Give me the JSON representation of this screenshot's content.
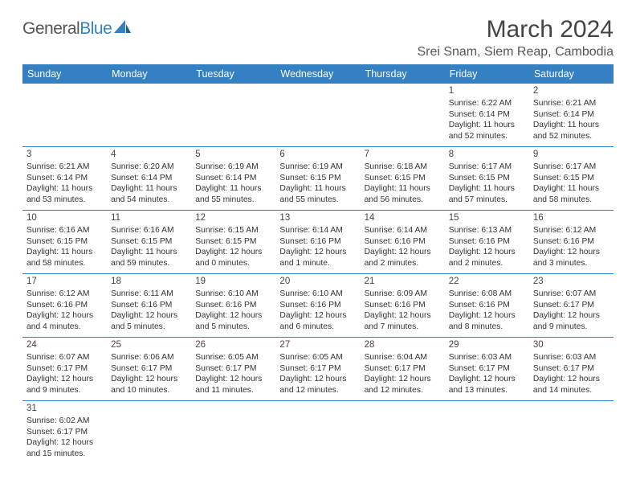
{
  "brand": {
    "general": "General",
    "blue": "Blue"
  },
  "title": "March 2024",
  "location": "Srei Snam, Siem Reap, Cambodia",
  "colors": {
    "header_bg": "#3580c2",
    "header_fg": "#ffffff",
    "rule": "#3580c2",
    "text": "#333333"
  },
  "weekdays": [
    "Sunday",
    "Monday",
    "Tuesday",
    "Wednesday",
    "Thursday",
    "Friday",
    "Saturday"
  ],
  "weeks": [
    [
      null,
      null,
      null,
      null,
      null,
      {
        "n": "1",
        "sr": "Sunrise: 6:22 AM",
        "ss": "Sunset: 6:14 PM",
        "dl1": "Daylight: 11 hours",
        "dl2": "and 52 minutes."
      },
      {
        "n": "2",
        "sr": "Sunrise: 6:21 AM",
        "ss": "Sunset: 6:14 PM",
        "dl1": "Daylight: 11 hours",
        "dl2": "and 52 minutes."
      }
    ],
    [
      {
        "n": "3",
        "sr": "Sunrise: 6:21 AM",
        "ss": "Sunset: 6:14 PM",
        "dl1": "Daylight: 11 hours",
        "dl2": "and 53 minutes."
      },
      {
        "n": "4",
        "sr": "Sunrise: 6:20 AM",
        "ss": "Sunset: 6:14 PM",
        "dl1": "Daylight: 11 hours",
        "dl2": "and 54 minutes."
      },
      {
        "n": "5",
        "sr": "Sunrise: 6:19 AM",
        "ss": "Sunset: 6:14 PM",
        "dl1": "Daylight: 11 hours",
        "dl2": "and 55 minutes."
      },
      {
        "n": "6",
        "sr": "Sunrise: 6:19 AM",
        "ss": "Sunset: 6:15 PM",
        "dl1": "Daylight: 11 hours",
        "dl2": "and 55 minutes."
      },
      {
        "n": "7",
        "sr": "Sunrise: 6:18 AM",
        "ss": "Sunset: 6:15 PM",
        "dl1": "Daylight: 11 hours",
        "dl2": "and 56 minutes."
      },
      {
        "n": "8",
        "sr": "Sunrise: 6:17 AM",
        "ss": "Sunset: 6:15 PM",
        "dl1": "Daylight: 11 hours",
        "dl2": "and 57 minutes."
      },
      {
        "n": "9",
        "sr": "Sunrise: 6:17 AM",
        "ss": "Sunset: 6:15 PM",
        "dl1": "Daylight: 11 hours",
        "dl2": "and 58 minutes."
      }
    ],
    [
      {
        "n": "10",
        "sr": "Sunrise: 6:16 AM",
        "ss": "Sunset: 6:15 PM",
        "dl1": "Daylight: 11 hours",
        "dl2": "and 58 minutes."
      },
      {
        "n": "11",
        "sr": "Sunrise: 6:16 AM",
        "ss": "Sunset: 6:15 PM",
        "dl1": "Daylight: 11 hours",
        "dl2": "and 59 minutes."
      },
      {
        "n": "12",
        "sr": "Sunrise: 6:15 AM",
        "ss": "Sunset: 6:15 PM",
        "dl1": "Daylight: 12 hours",
        "dl2": "and 0 minutes."
      },
      {
        "n": "13",
        "sr": "Sunrise: 6:14 AM",
        "ss": "Sunset: 6:16 PM",
        "dl1": "Daylight: 12 hours",
        "dl2": "and 1 minute."
      },
      {
        "n": "14",
        "sr": "Sunrise: 6:14 AM",
        "ss": "Sunset: 6:16 PM",
        "dl1": "Daylight: 12 hours",
        "dl2": "and 2 minutes."
      },
      {
        "n": "15",
        "sr": "Sunrise: 6:13 AM",
        "ss": "Sunset: 6:16 PM",
        "dl1": "Daylight: 12 hours",
        "dl2": "and 2 minutes."
      },
      {
        "n": "16",
        "sr": "Sunrise: 6:12 AM",
        "ss": "Sunset: 6:16 PM",
        "dl1": "Daylight: 12 hours",
        "dl2": "and 3 minutes."
      }
    ],
    [
      {
        "n": "17",
        "sr": "Sunrise: 6:12 AM",
        "ss": "Sunset: 6:16 PM",
        "dl1": "Daylight: 12 hours",
        "dl2": "and 4 minutes."
      },
      {
        "n": "18",
        "sr": "Sunrise: 6:11 AM",
        "ss": "Sunset: 6:16 PM",
        "dl1": "Daylight: 12 hours",
        "dl2": "and 5 minutes."
      },
      {
        "n": "19",
        "sr": "Sunrise: 6:10 AM",
        "ss": "Sunset: 6:16 PM",
        "dl1": "Daylight: 12 hours",
        "dl2": "and 5 minutes."
      },
      {
        "n": "20",
        "sr": "Sunrise: 6:10 AM",
        "ss": "Sunset: 6:16 PM",
        "dl1": "Daylight: 12 hours",
        "dl2": "and 6 minutes."
      },
      {
        "n": "21",
        "sr": "Sunrise: 6:09 AM",
        "ss": "Sunset: 6:16 PM",
        "dl1": "Daylight: 12 hours",
        "dl2": "and 7 minutes."
      },
      {
        "n": "22",
        "sr": "Sunrise: 6:08 AM",
        "ss": "Sunset: 6:16 PM",
        "dl1": "Daylight: 12 hours",
        "dl2": "and 8 minutes."
      },
      {
        "n": "23",
        "sr": "Sunrise: 6:07 AM",
        "ss": "Sunset: 6:17 PM",
        "dl1": "Daylight: 12 hours",
        "dl2": "and 9 minutes."
      }
    ],
    [
      {
        "n": "24",
        "sr": "Sunrise: 6:07 AM",
        "ss": "Sunset: 6:17 PM",
        "dl1": "Daylight: 12 hours",
        "dl2": "and 9 minutes."
      },
      {
        "n": "25",
        "sr": "Sunrise: 6:06 AM",
        "ss": "Sunset: 6:17 PM",
        "dl1": "Daylight: 12 hours",
        "dl2": "and 10 minutes."
      },
      {
        "n": "26",
        "sr": "Sunrise: 6:05 AM",
        "ss": "Sunset: 6:17 PM",
        "dl1": "Daylight: 12 hours",
        "dl2": "and 11 minutes."
      },
      {
        "n": "27",
        "sr": "Sunrise: 6:05 AM",
        "ss": "Sunset: 6:17 PM",
        "dl1": "Daylight: 12 hours",
        "dl2": "and 12 minutes."
      },
      {
        "n": "28",
        "sr": "Sunrise: 6:04 AM",
        "ss": "Sunset: 6:17 PM",
        "dl1": "Daylight: 12 hours",
        "dl2": "and 12 minutes."
      },
      {
        "n": "29",
        "sr": "Sunrise: 6:03 AM",
        "ss": "Sunset: 6:17 PM",
        "dl1": "Daylight: 12 hours",
        "dl2": "and 13 minutes."
      },
      {
        "n": "30",
        "sr": "Sunrise: 6:03 AM",
        "ss": "Sunset: 6:17 PM",
        "dl1": "Daylight: 12 hours",
        "dl2": "and 14 minutes."
      }
    ],
    [
      {
        "n": "31",
        "sr": "Sunrise: 6:02 AM",
        "ss": "Sunset: 6:17 PM",
        "dl1": "Daylight: 12 hours",
        "dl2": "and 15 minutes."
      },
      null,
      null,
      null,
      null,
      null,
      null
    ]
  ]
}
